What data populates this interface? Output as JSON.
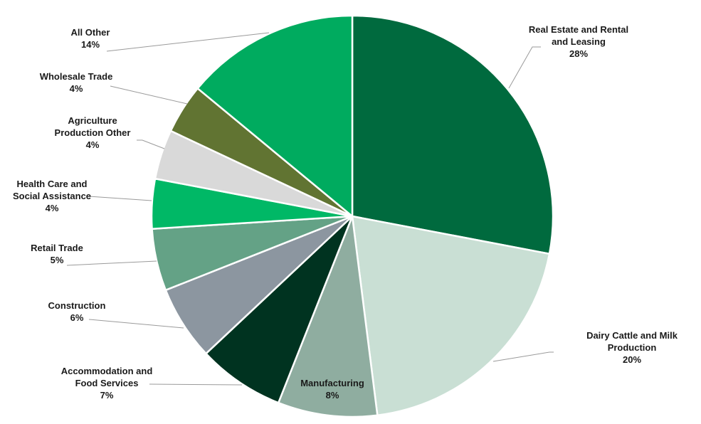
{
  "chart_data": {
    "type": "pie",
    "title": "",
    "start_angle_deg": 0,
    "direction": "clockwise",
    "slices": [
      {
        "label_lines": [
          "Real Estate and Rental",
          "and Leasing"
        ],
        "pct_label": "28%",
        "value": 28,
        "color": "#006a3e"
      },
      {
        "label_lines": [
          "Dairy Cattle and Milk",
          "Production"
        ],
        "pct_label": "20%",
        "value": 20,
        "color": "#c9dfd4"
      },
      {
        "label_lines": [
          "Manufacturing"
        ],
        "pct_label": "8%",
        "value": 8,
        "color": "#8fada0"
      },
      {
        "label_lines": [
          "Accommodation and",
          "Food Services"
        ],
        "pct_label": "7%",
        "value": 7,
        "color": "#003320"
      },
      {
        "label_lines": [
          "Construction"
        ],
        "pct_label": "6%",
        "value": 6,
        "color": "#8c96a0"
      },
      {
        "label_lines": [
          "Retail Trade"
        ],
        "pct_label": "5%",
        "value": 5,
        "color": "#64a286"
      },
      {
        "label_lines": [
          "Health Care and",
          "Social Assistance"
        ],
        "pct_label": "4%",
        "value": 4,
        "color": "#00b866"
      },
      {
        "label_lines": [
          "Agriculture",
          "Production Other"
        ],
        "pct_label": "4%",
        "value": 4,
        "color": "#d9d9d9"
      },
      {
        "label_lines": [
          "Wholesale Trade"
        ],
        "pct_label": "4%",
        "value": 4,
        "color": "#617432"
      },
      {
        "label_lines": [
          "All Other"
        ],
        "pct_label": "14%",
        "value": 14,
        "color": "#00ab5f"
      }
    ]
  }
}
